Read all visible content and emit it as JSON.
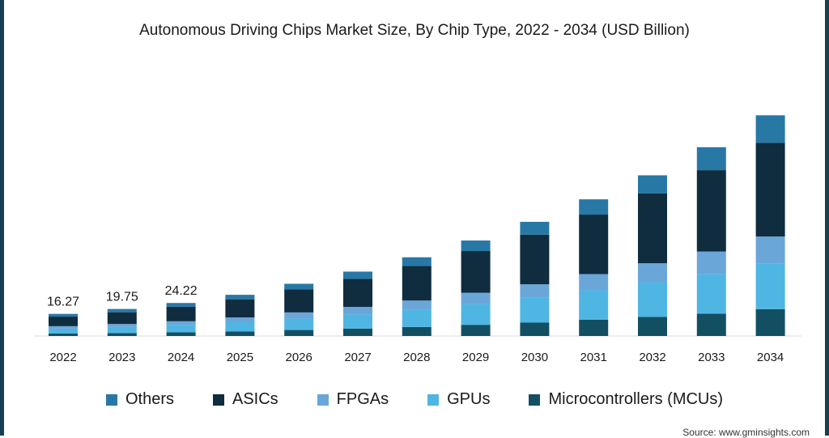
{
  "chart_data": {
    "type": "bar",
    "stacked": true,
    "title": "Autonomous Driving Chips Market Size, By Chip Type, 2022 - 2034 (USD Billion)",
    "categories": [
      "2022",
      "2023",
      "2024",
      "2025",
      "2026",
      "2027",
      "2028",
      "2029",
      "2030",
      "2031",
      "2032",
      "2033",
      "2034"
    ],
    "series": [
      {
        "name": "Microcontrollers (MCUs)",
        "color": "#134f63",
        "values": [
          1.8,
          2.2,
          2.7,
          3.4,
          4.4,
          5.4,
          6.6,
          8.2,
          9.8,
          11.9,
          14.0,
          16.4,
          19.7
        ]
      },
      {
        "name": "GPUs",
        "color": "#4fb6e3",
        "values": [
          3.6,
          4.4,
          5.4,
          6.7,
          8.4,
          10.4,
          12.6,
          15.2,
          18.2,
          21.6,
          25.2,
          29.1,
          33.5
        ]
      },
      {
        "name": "FPGAs",
        "color": "#6ba6d8",
        "values": [
          1.8,
          2.2,
          2.7,
          3.5,
          4.5,
          5.5,
          6.8,
          8.3,
          9.9,
          11.9,
          14.1,
          16.4,
          19.7
        ]
      },
      {
        "name": "ASICs",
        "color": "#0f2d3f",
        "values": [
          7.0,
          8.6,
          10.6,
          13.3,
          16.8,
          20.6,
          25.3,
          30.6,
          36.4,
          43.6,
          51.2,
          59.7,
          68.8
        ]
      },
      {
        "name": "Others",
        "color": "#2878a6",
        "values": [
          2.0,
          2.4,
          2.8,
          3.3,
          4.2,
          5.3,
          6.4,
          7.7,
          9.4,
          11.2,
          13.3,
          16.8,
          20.1
        ]
      }
    ],
    "totals_labels": [
      "16.27",
      "19.75",
      "24.22",
      "",
      "",
      "",
      "",
      "",
      "",
      "",
      "",
      "",
      ""
    ],
    "ymax": 165,
    "legend_position": "bottom",
    "grid": false
  },
  "legend": [
    "Others",
    "ASICs",
    "FPGAs",
    "GPUs",
    "Microcontrollers (MCUs)"
  ],
  "source": "Source: www.gminsights.com"
}
